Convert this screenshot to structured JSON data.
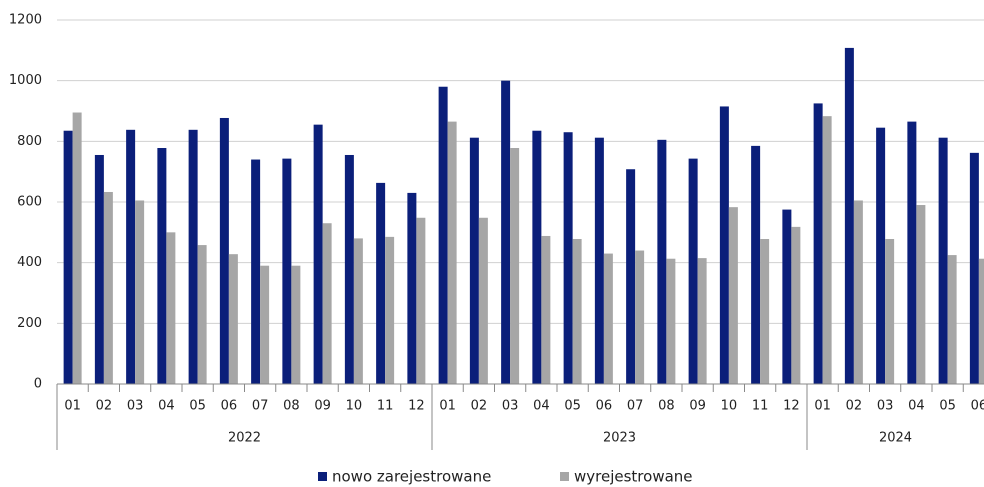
{
  "chart_data": {
    "type": "bar",
    "groups": [
      {
        "label": "2022",
        "categories": [
          "01",
          "02",
          "03",
          "04",
          "05",
          "06",
          "07",
          "08",
          "09",
          "10",
          "11",
          "12"
        ]
      },
      {
        "label": "2023",
        "categories": [
          "01",
          "02",
          "03",
          "04",
          "05",
          "06",
          "07",
          "08",
          "09",
          "10",
          "11",
          "12"
        ]
      },
      {
        "label": "2024",
        "categories": [
          "01",
          "02",
          "03",
          "04",
          "05",
          "06"
        ]
      }
    ],
    "series": [
      {
        "name": "nowo zarejestrowane",
        "color": "#0b1f7a",
        "values": [
          835,
          755,
          838,
          778,
          838,
          877,
          740,
          743,
          855,
          755,
          663,
          630,
          980,
          812,
          1000,
          835,
          830,
          812,
          708,
          805,
          743,
          915,
          785,
          575,
          925,
          1108,
          845,
          865,
          812,
          762
        ]
      },
      {
        "name": "wyrejestrowane",
        "color": "#a6a6a6",
        "values": [
          895,
          633,
          605,
          500,
          458,
          428,
          390,
          390,
          530,
          480,
          485,
          548,
          865,
          548,
          778,
          488,
          478,
          430,
          440,
          413,
          415,
          583,
          478,
          518,
          883,
          605,
          478,
          590,
          425,
          413
        ]
      }
    ],
    "ylim": [
      0,
      1200
    ],
    "yticks": [
      0,
      200,
      400,
      600,
      800,
      1000,
      1200
    ],
    "grid": true,
    "legend": "bottom"
  }
}
